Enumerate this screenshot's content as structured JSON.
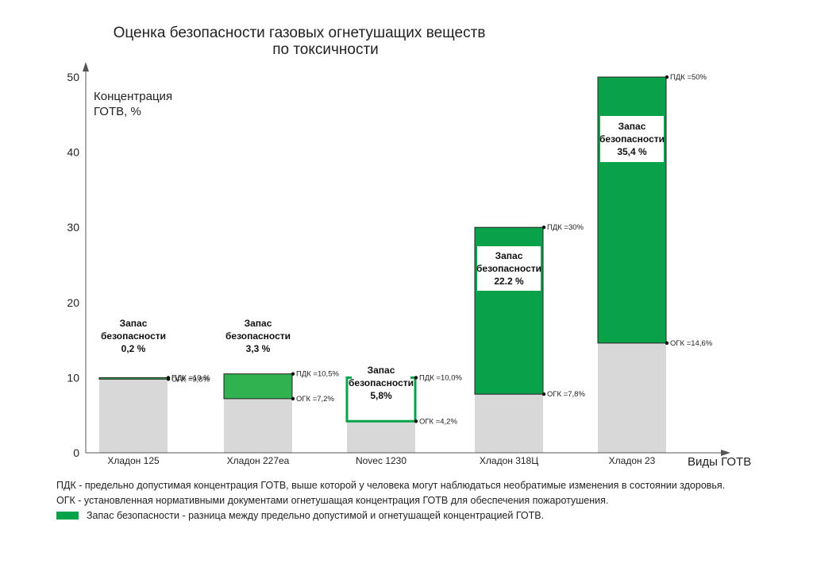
{
  "chart_data": {
    "type": "bar",
    "stacked": true,
    "title_lines": [
      "Оценка безопасности газовых огнетушащих веществ",
      "по токсичности"
    ],
    "ylabel_lines": [
      "Концентрация",
      "ГОТВ, %"
    ],
    "xlabel": "Виды ГОТВ",
    "ylim": [
      0,
      50
    ],
    "yticks": [
      0,
      10,
      20,
      30,
      40,
      50
    ],
    "categories": [
      "Хладон 125",
      "Хладон 227еа",
      "Novec 1230",
      "Хладон 318Ц",
      "Хладон 23"
    ],
    "series": [
      {
        "values": [
          9.8,
          7.2,
          4.2,
          7.8,
          14.6
        ]
      },
      {
        "values": [
          0.2,
          3.3,
          5.8,
          22.2,
          35.4
        ]
      }
    ],
    "pdk_labels": [
      "ПДК =10 %",
      "ПДК =10,5%",
      "ПДК =10,0%",
      "ПДК =30%",
      "ПДК =50%"
    ],
    "ogk_labels": [
      "ОГК =9,8%",
      "ОГК =7,2%",
      "ОГК =4,2%",
      "ОГК =7,8%",
      "ОГК =14,6%"
    ],
    "margin_labels": [
      [
        "Запас",
        "безопасности",
        "0,2 %"
      ],
      [
        "Запас",
        "безопасности",
        "3,3 %"
      ],
      [
        "Запас",
        "безопасности",
        "5,8%"
      ],
      [
        "Запас",
        "безопасности",
        "22.2 %"
      ],
      [
        "Запас",
        "безопасности",
        "35,4 %"
      ]
    ],
    "legend": [
      "ПДК - предельно допустимая концентрация ГОТВ, выше которой у человека могут наблюдаться необратимые изменения в состоянии здоровья.",
      "ОГК - установленная нормативными документами огнетушащая концентрация ГОТВ для обеспечения пожаротушения.",
      "Запас безопасности - разница между предельно допустимой и огнетушащей концентрацией ГОТВ."
    ],
    "colors": {
      "base": "#d8d8d8",
      "margin": "#0aa14b",
      "margin_light": "#2fb24f",
      "axis": "#555555"
    }
  }
}
